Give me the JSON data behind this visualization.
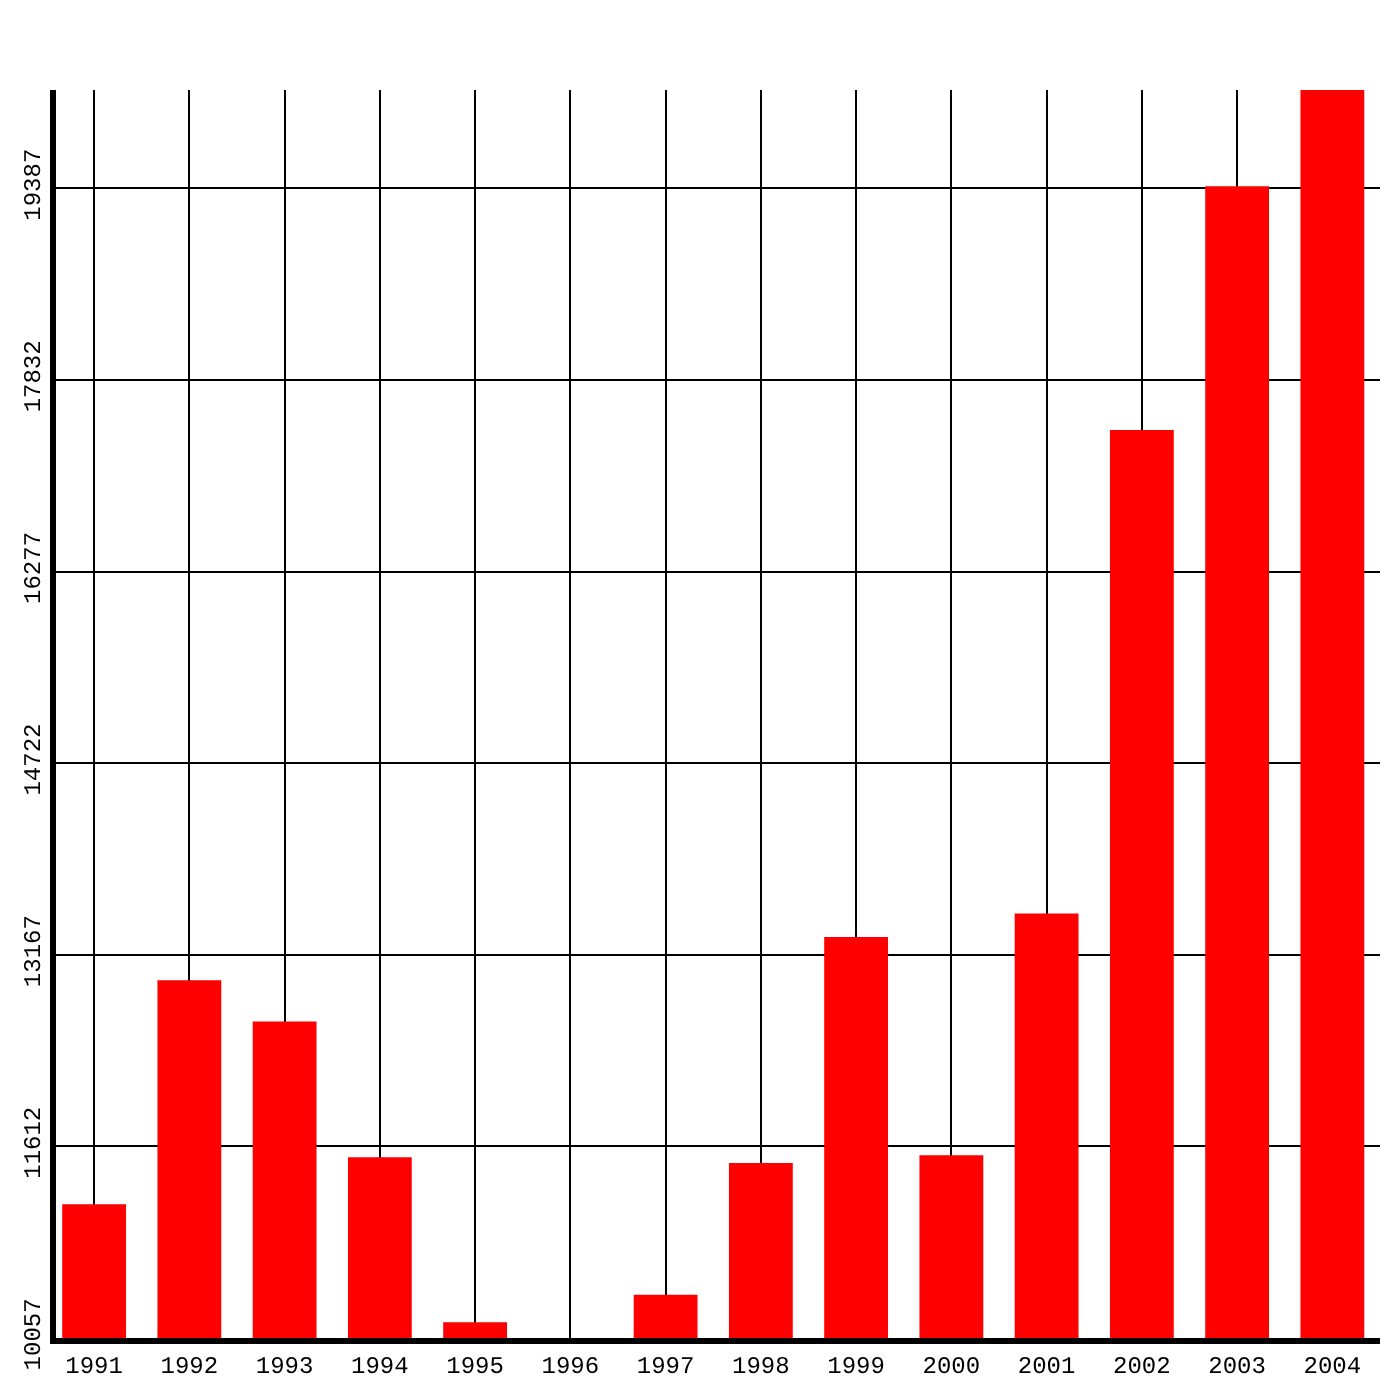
{
  "chart_data": {
    "type": "bar",
    "categories": [
      "1991",
      "1992",
      "1993",
      "1994",
      "1995",
      "1996",
      "1997",
      "1998",
      "1999",
      "2000",
      "2001",
      "2002",
      "2003",
      "2004"
    ],
    "values": [
      11142,
      12960,
      12625,
      11524,
      10185,
      10057,
      10408,
      11477,
      13311,
      11540,
      13502,
      17426,
      19404,
      20185
    ],
    "color": "#ff0000",
    "ylim": [
      10057,
      20185
    ],
    "yticks": [
      10057,
      11612,
      13167,
      14722,
      16277,
      17832,
      19387
    ],
    "grid": true
  }
}
